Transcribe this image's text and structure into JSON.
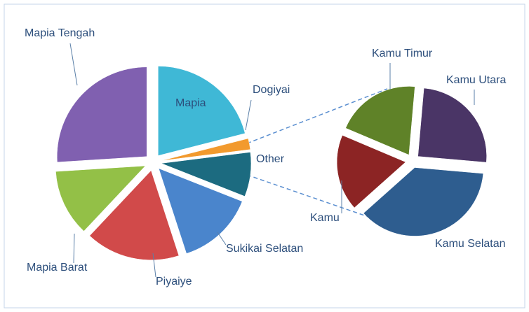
{
  "chart_data": [
    {
      "type": "pie",
      "categories": [
        "Mapia",
        "Dogiyai",
        "Other",
        "Sukikai Selatan",
        "Piyaiye",
        "Mapia Barat",
        "Mapia Tengah"
      ],
      "values": [
        21,
        2,
        8,
        14,
        17,
        12,
        26
      ],
      "colors": [
        "#3fb8d6",
        "#f29a2e",
        "#1c6b80",
        "#4a85cc",
        "#d14a4a",
        "#93c047",
        "#8060b0"
      ]
    },
    {
      "type": "pie",
      "categories": [
        "Kamu Utara",
        "Kamu Selatan",
        "Kamu",
        "Kamu Timur"
      ],
      "values": [
        25,
        37,
        18,
        20
      ],
      "colors": [
        "#4a3566",
        "#2e5d8f",
        "#8c2424",
        "#5f8228"
      ]
    }
  ]
}
